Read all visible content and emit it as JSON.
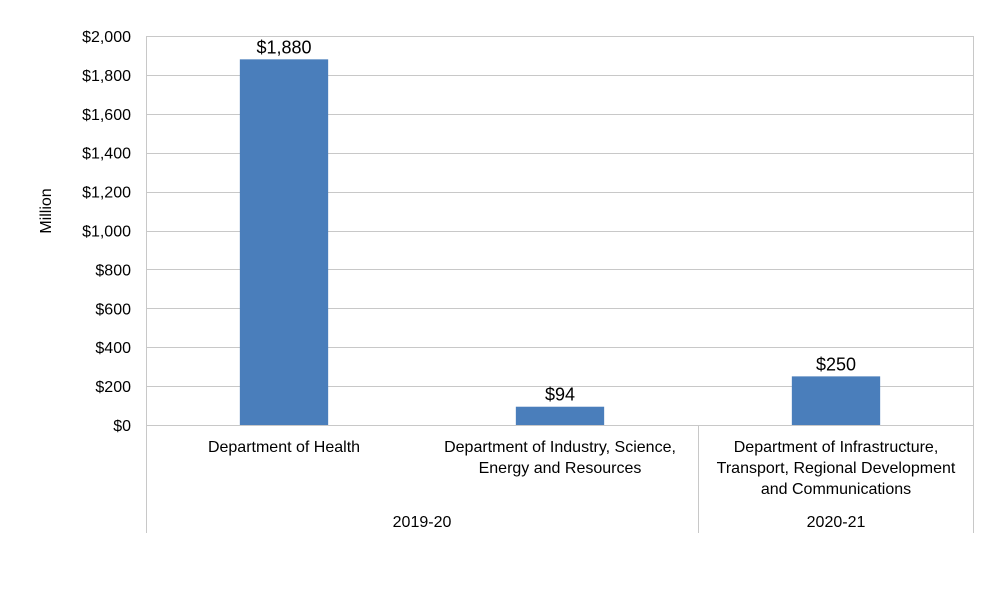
{
  "chart_data": {
    "type": "bar",
    "ylabel": "Million",
    "ylim": [
      0,
      2000
    ],
    "yticks": [
      0,
      200,
      400,
      600,
      800,
      1000,
      1200,
      1400,
      1600,
      1800,
      2000
    ],
    "ytick_labels": [
      "$0",
      "$200",
      "$400",
      "$600",
      "$800",
      "$1,000",
      "$1,200",
      "$1,400",
      "$1,600",
      "$1,800",
      "$2,000"
    ],
    "categories": [
      "Department of Health",
      "Department of Industry, Science, Energy and Resources",
      "Department of Infrastructure, Transport, Regional Development and Communications"
    ],
    "category_lines": [
      [
        "Department of Health"
      ],
      [
        "Department of Industry, Science,",
        "Energy and Resources"
      ],
      [
        "Department of Infrastructure,",
        "Transport, Regional Development",
        "and Communications"
      ]
    ],
    "values": [
      1880,
      94,
      250
    ],
    "data_labels": [
      "$1,880",
      "$94",
      "$250"
    ],
    "groups": [
      {
        "label": "2019-20",
        "categories": [
          0,
          1
        ]
      },
      {
        "label": "2020-21",
        "categories": [
          2
        ]
      }
    ],
    "bar_color": "#4a7ebb",
    "grid": true,
    "legend": "none"
  }
}
